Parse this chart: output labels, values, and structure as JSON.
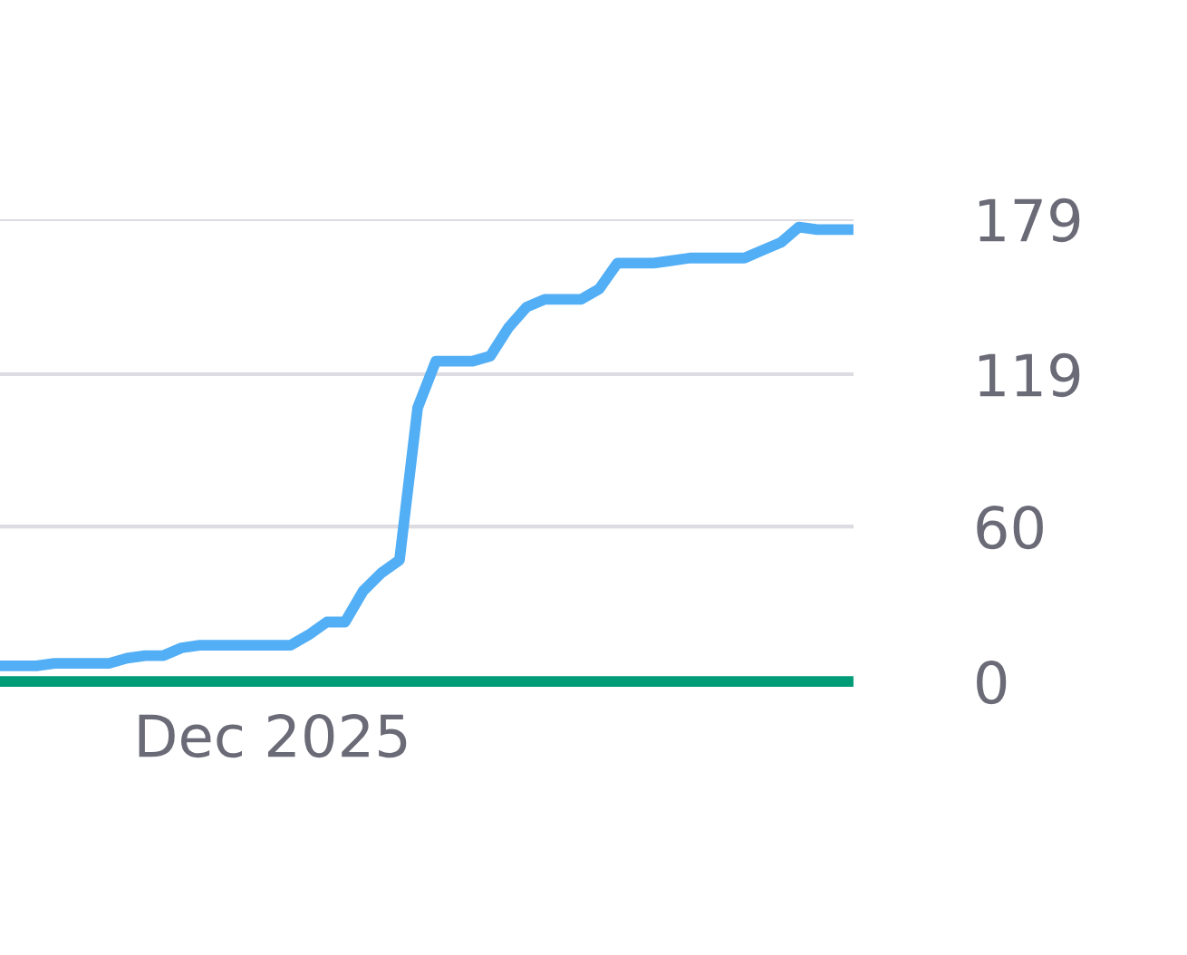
{
  "chart_data": {
    "type": "line",
    "categories": [
      null,
      null,
      null,
      null,
      null,
      null,
      null,
      null,
      null,
      null,
      null,
      null,
      null,
      null,
      null,
      "Dec 2025",
      null,
      null,
      null,
      null,
      null,
      null,
      null,
      null,
      null,
      null,
      null,
      null,
      null,
      null,
      null,
      null,
      null,
      null,
      null,
      null,
      null,
      null,
      null,
      null,
      null,
      null,
      null,
      null,
      null,
      null,
      null,
      null
    ],
    "series": [
      {
        "color": "#52aef5",
        "values": [
          6,
          6,
          6,
          7,
          7,
          7,
          7,
          9,
          10,
          10,
          13,
          14,
          14,
          14,
          14,
          14,
          14,
          18,
          23,
          23,
          35,
          42,
          47,
          106,
          124,
          124,
          124,
          126,
          137,
          145,
          148,
          148,
          148,
          152,
          162,
          162,
          162,
          163,
          164,
          164,
          164,
          164,
          167,
          170,
          176,
          175,
          175,
          175
        ]
      },
      {
        "color": "#009b77",
        "values": [
          0,
          0,
          0,
          0,
          0,
          0,
          0,
          0,
          0,
          0,
          0,
          0,
          0,
          0,
          0,
          0,
          0,
          0,
          0,
          0,
          0,
          0,
          0,
          0,
          0,
          0,
          0,
          0,
          0,
          0,
          0,
          0,
          0,
          0,
          0,
          0,
          0,
          0,
          0,
          0,
          0,
          0,
          0,
          0,
          0,
          0,
          0,
          0
        ]
      }
    ],
    "ylim": [
      0,
      179
    ],
    "yticks": [
      0,
      60,
      119,
      179
    ],
    "grid": "y",
    "legend": false
  }
}
